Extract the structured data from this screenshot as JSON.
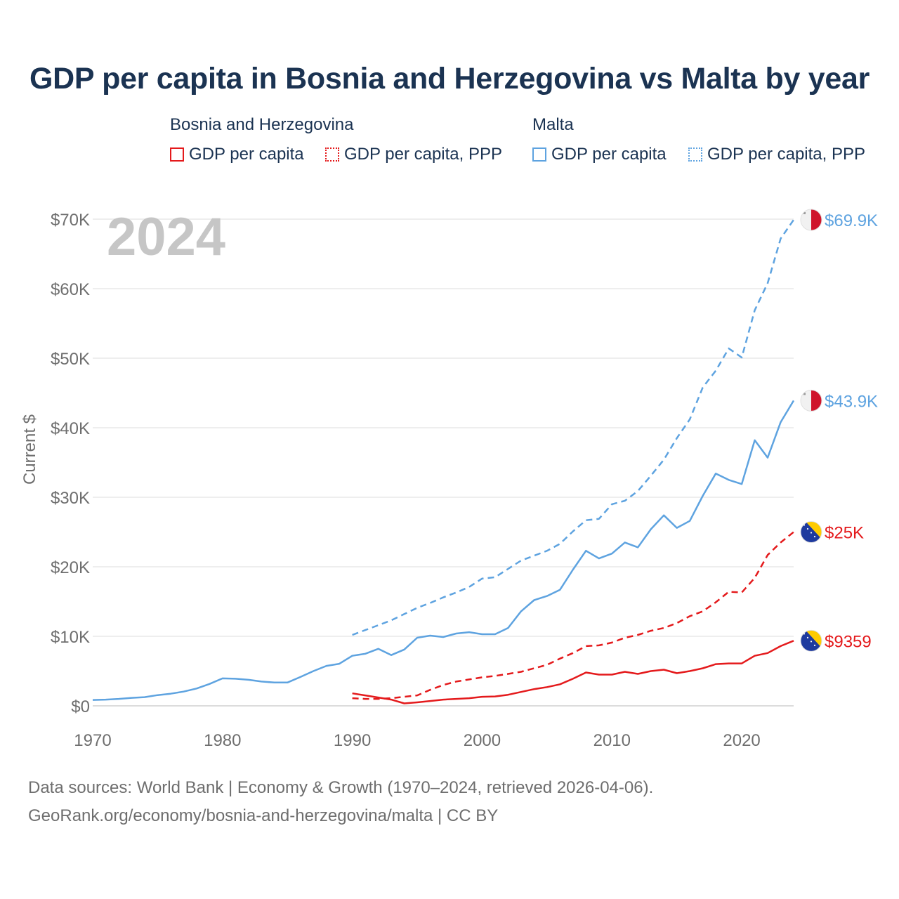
{
  "title": "GDP per capita in Bosnia and Herzegovina vs Malta by year",
  "legend": {
    "groups": [
      {
        "name": "Bosnia and Herzegovina",
        "color": "#e41a1c",
        "items": [
          {
            "label": "GDP per capita",
            "style": "solid"
          },
          {
            "label": "GDP per capita, PPP",
            "style": "dotted"
          }
        ]
      },
      {
        "name": "Malta",
        "color": "#5ea3e0",
        "items": [
          {
            "label": "GDP per capita",
            "style": "solid"
          },
          {
            "label": "GDP per capita, PPP",
            "style": "dotted"
          }
        ]
      }
    ]
  },
  "chart_data": {
    "type": "line",
    "title": "GDP per capita in Bosnia and Herzegovina vs Malta by year",
    "xlabel": "",
    "ylabel": "Current $",
    "xlim": [
      1970,
      2024
    ],
    "ylim": [
      0,
      70000
    ],
    "x_ticks": [
      1970,
      1980,
      1990,
      2000,
      2010,
      2020
    ],
    "x_tick_labels": [
      "1970",
      "1980",
      "1990",
      "2000",
      "2010",
      "2020"
    ],
    "y_ticks": [
      0,
      10000,
      20000,
      30000,
      40000,
      50000,
      60000,
      70000
    ],
    "y_tick_labels": [
      "$0",
      "$10K",
      "$20K",
      "$30K",
      "$40K",
      "$50K",
      "$60K",
      "$70K"
    ],
    "year_watermark": "2024",
    "series": [
      {
        "name": "Malta GDP per capita, PPP",
        "country": "Malta",
        "color": "#5ea3e0",
        "dash": true,
        "end_label": "$69.9K",
        "flag": "malta",
        "x": [
          1990,
          1991,
          1992,
          1993,
          1994,
          1995,
          1996,
          1997,
          1998,
          1999,
          2000,
          2001,
          2002,
          2003,
          2004,
          2005,
          2006,
          2007,
          2008,
          2009,
          2010,
          2011,
          2012,
          2013,
          2014,
          2015,
          2016,
          2017,
          2018,
          2019,
          2020,
          2021,
          2022,
          2023,
          2024
        ],
        "values": [
          10200,
          10900,
          11600,
          12300,
          13200,
          14100,
          14800,
          15600,
          16300,
          17100,
          18300,
          18500,
          19700,
          20900,
          21600,
          22300,
          23300,
          25100,
          26700,
          26900,
          29000,
          29500,
          30900,
          33100,
          35400,
          38500,
          41200,
          45800,
          48200,
          51400,
          50100,
          56900,
          60800,
          67200,
          69900
        ]
      },
      {
        "name": "Malta GDP per capita",
        "country": "Malta",
        "color": "#5ea3e0",
        "dash": false,
        "end_label": "$43.9K",
        "flag": "malta",
        "x": [
          1970,
          1971,
          1972,
          1973,
          1974,
          1975,
          1976,
          1977,
          1978,
          1979,
          1980,
          1981,
          1982,
          1983,
          1984,
          1985,
          1986,
          1987,
          1988,
          1989,
          1990,
          1991,
          1992,
          1993,
          1994,
          1995,
          1996,
          1997,
          1998,
          1999,
          2000,
          2001,
          2002,
          2003,
          2004,
          2005,
          2006,
          2007,
          2008,
          2009,
          2010,
          2011,
          2012,
          2013,
          2014,
          2015,
          2016,
          2017,
          2018,
          2019,
          2020,
          2021,
          2022,
          2023,
          2024
        ],
        "values": [
          850,
          900,
          1000,
          1150,
          1250,
          1550,
          1750,
          2050,
          2500,
          3150,
          3950,
          3900,
          3750,
          3500,
          3350,
          3350,
          4150,
          5000,
          5750,
          6050,
          7200,
          7500,
          8200,
          7300,
          8100,
          9800,
          10100,
          9900,
          10400,
          10600,
          10300,
          10300,
          11200,
          13600,
          15200,
          15800,
          16700,
          19600,
          22300,
          21200,
          21900,
          23500,
          22800,
          25400,
          27400,
          25600,
          26600,
          30200,
          33400,
          32500,
          31900,
          38200,
          35700,
          40800,
          43900
        ]
      },
      {
        "name": "Bosnia and Herzegovina GDP per capita, PPP",
        "country": "Bosnia and Herzegovina",
        "color": "#e41a1c",
        "dash": true,
        "end_label": "$25K",
        "flag": "bosnia",
        "x": [
          1990,
          1991,
          1992,
          1993,
          1994,
          1995,
          1996,
          1997,
          1998,
          1999,
          2000,
          2001,
          2002,
          2003,
          2004,
          2005,
          2006,
          2007,
          2008,
          2009,
          2010,
          2011,
          2012,
          2013,
          2014,
          2015,
          2016,
          2017,
          2018,
          2019,
          2020,
          2021,
          2022,
          2023,
          2024
        ],
        "values": [
          1100,
          1000,
          1000,
          1100,
          1300,
          1500,
          2300,
          3000,
          3500,
          3800,
          4100,
          4300,
          4600,
          4900,
          5400,
          5900,
          6800,
          7600,
          8600,
          8700,
          9100,
          9800,
          10200,
          10800,
          11200,
          11900,
          12900,
          13600,
          14900,
          16400,
          16300,
          18400,
          21700,
          23500,
          25000
        ]
      },
      {
        "name": "Bosnia and Herzegovina GDP per capita",
        "country": "Bosnia and Herzegovina",
        "color": "#e41a1c",
        "dash": false,
        "end_label": "$9359",
        "flag": "bosnia",
        "x": [
          1990,
          1991,
          1992,
          1993,
          1994,
          1995,
          1996,
          1997,
          1998,
          1999,
          2000,
          2001,
          2002,
          2003,
          2004,
          2005,
          2006,
          2007,
          2008,
          2009,
          2010,
          2011,
          2012,
          2013,
          2014,
          2015,
          2016,
          2017,
          2018,
          2019,
          2020,
          2021,
          2022,
          2023,
          2024
        ],
        "values": [
          1800,
          1500,
          1200,
          900,
          350,
          500,
          700,
          900,
          1000,
          1100,
          1300,
          1350,
          1600,
          2000,
          2400,
          2700,
          3100,
          3900,
          4800,
          4500,
          4500,
          4900,
          4600,
          5000,
          5200,
          4700,
          5000,
          5400,
          6000,
          6100,
          6100,
          7200,
          7600,
          8600,
          9359
        ]
      }
    ]
  },
  "footer": {
    "line1": "Data sources: World Bank | Economy & Growth (1970–2024, retrieved 2026-04-06).",
    "line2": "GeoRank.org/economy/bosnia-and-herzegovina/malta | CC BY"
  }
}
